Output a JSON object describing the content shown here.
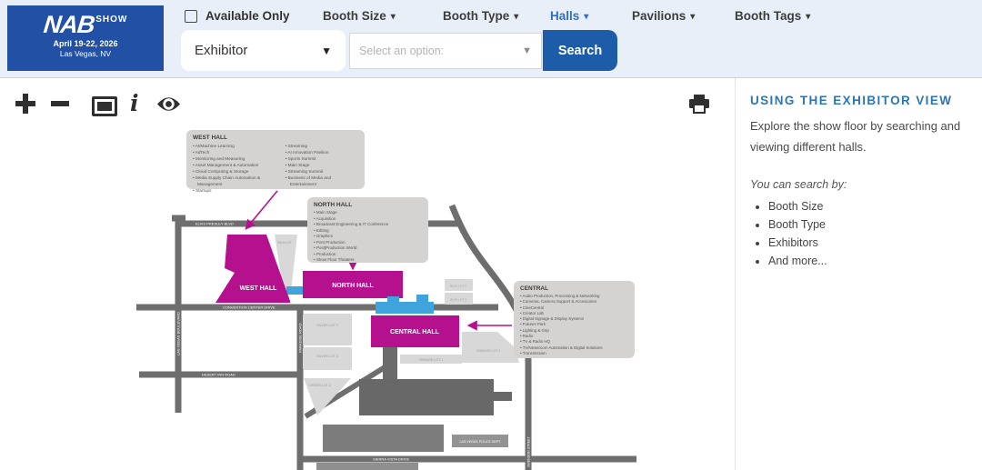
{
  "header": {
    "logo": {
      "brand": "NAB",
      "show_label": "SHOW",
      "dates": "April 19-22, 2026",
      "location": "Las Vegas, NV"
    },
    "available_only_label": "Available Only",
    "filters": [
      {
        "label": "Booth Size",
        "active": false
      },
      {
        "label": "Booth Type",
        "active": false
      },
      {
        "label": "Halls",
        "active": true
      },
      {
        "label": "Pavilions",
        "active": false
      },
      {
        "label": "Booth Tags",
        "active": false
      }
    ],
    "category_select_value": "Exhibitor",
    "option_placeholder": "Select an option:",
    "search_button_label": "Search"
  },
  "toolbar": {
    "icons": [
      "zoom-in",
      "zoom-out",
      "fit-view",
      "info",
      "toggle-visibility",
      "print"
    ]
  },
  "sidebar": {
    "title": "USING THE EXHIBITOR VIEW",
    "description": "Explore the show floor by searching and viewing different halls.",
    "search_by_label": "You can search by:",
    "search_by": [
      "Booth Size",
      "Booth Type",
      "Exhibitors",
      "And more..."
    ]
  },
  "map": {
    "hall_labels": {
      "west": "WEST HALL",
      "north": "NORTH HALL",
      "central": "CENTRAL HALL"
    },
    "callouts": {
      "west": {
        "title": "WEST HALL",
        "col1": [
          "AI/Machine Learning",
          "AdTech",
          "Monitoring and Measuring",
          "Asset Management & Automation",
          "Cloud Computing & Storage",
          "Media Supply Chain Automation & Management",
          "Startups"
        ],
        "col2": [
          "Streaming",
          "AI Innovation Pavilion",
          "Sports Summit",
          "Main Stage",
          "Streaming Summit",
          "Business of Media and Entertainment"
        ]
      },
      "north": {
        "title": "NORTH HALL",
        "items": [
          "Main Stage",
          "Acquisition",
          "Broadcast Engineering & IT Conference",
          "Editing",
          "Graphics",
          "Post Production",
          "Post|Production World",
          "Production",
          "Show Floor Theaters"
        ]
      },
      "central": {
        "title": "CENTRAL",
        "items": [
          "Audio Production, Processing & Networking",
          "Cameras, Camera Support & Accessories",
          "CineCentral",
          "Creator Lab",
          "Digital Signage & Display Systems",
          "Futures Park",
          "Lighting & Grip",
          "Radio",
          "TV & Radio HQ",
          "TV/Newsroom Automation & Digital Solutions",
          "Transmission"
        ]
      }
    },
    "road_labels": {
      "top": "ELVIS PRESLEY BLVD",
      "left": "LAS VEGAS BOULEVARD",
      "convention": "CONVENTION CENTER DRIVE",
      "paradise": "PARADISE ROAD",
      "desert_inn": "DESERT INN ROAD",
      "sierra_vista": "SIERRA VISTA DRIVE",
      "right": "SWENSON STREET"
    },
    "lot_labels": {
      "palm": "PALM LOT",
      "silver2": "SILVER LOT 2",
      "silver3": "SILVER LOT 3",
      "green2": "GREEN LOT 2",
      "blue2": "BLUE LOT 2",
      "blue3": "BLUE LOT 3",
      "orange1": "ORANGE LOT 1",
      "orange2": "ORANGE LOT 2",
      "police": "LAS VEGAS POLICE DEPT"
    }
  },
  "colors": {
    "brand_blue": "#2150a5",
    "button_blue": "#1d5ca9",
    "active_filter_blue": "#2f6fc1",
    "sidebar_heading_blue": "#2e75b6",
    "hall_magenta": "#b5118f",
    "bridge_blue": "#3fa3dc",
    "road_gray": "#6e6e6e",
    "callout_gray": "#d5d3d1"
  }
}
